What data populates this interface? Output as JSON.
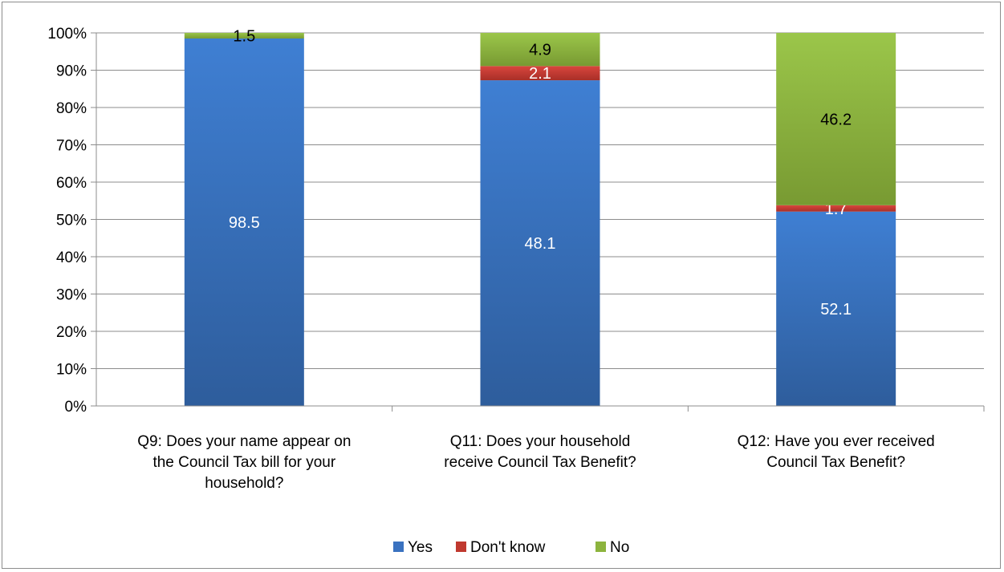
{
  "chart_data": {
    "type": "bar",
    "stacked": true,
    "percent_stacked": true,
    "categories": [
      [
        "Q9: Does your name appear on",
        "the Council Tax bill for your",
        "household?"
      ],
      [
        "Q11: Does your household",
        "receive Council Tax Benefit?"
      ],
      [
        "Q12: Have you ever received",
        "Council Tax Benefit?"
      ]
    ],
    "series": [
      {
        "name": "Yes",
        "color": "#3a72c0",
        "values": [
          98.5,
          48.1,
          52.1
        ],
        "labels": [
          "98.5",
          "48.1",
          "52.1"
        ],
        "label_color": "#ffffff"
      },
      {
        "name": "Don't know",
        "color": "#c0392f",
        "values": [
          0,
          2.1,
          1.7
        ],
        "labels": [
          "",
          "2.1",
          "1.7"
        ],
        "label_color": "#ffffff"
      },
      {
        "name": "No",
        "color": "#8db43e",
        "values": [
          1.5,
          4.9,
          46.2
        ],
        "labels": [
          "1.5",
          "4.9",
          "46.2"
        ],
        "label_color": "#000000"
      }
    ],
    "y_ticks": [
      "0%",
      "10%",
      "20%",
      "30%",
      "40%",
      "50%",
      "60%",
      "70%",
      "80%",
      "90%",
      "100%"
    ],
    "ylim": [
      0,
      100
    ],
    "grid": true,
    "legend_position": "bottom"
  }
}
